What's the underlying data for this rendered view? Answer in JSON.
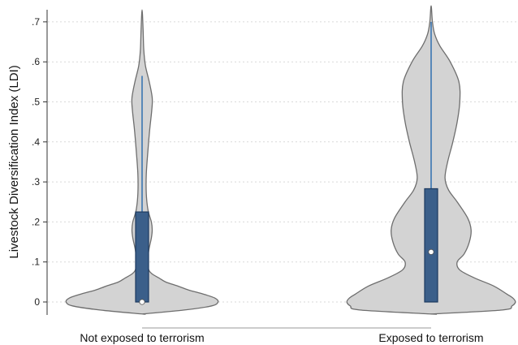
{
  "chart_data": {
    "type": "violin",
    "ylabel": "Livestock Diversification Index (LDI)",
    "ylim": [
      0,
      0.7
    ],
    "yticks": [
      0,
      0.1,
      0.2,
      0.3,
      0.4,
      0.5,
      0.6,
      0.7
    ],
    "ytick_labels": [
      "0",
      ".1",
      ".2",
      ".3",
      ".4",
      ".5",
      ".6",
      ".7"
    ],
    "grid": true,
    "colors": {
      "violin_fill": "#d3d3d3",
      "violin_edge": "#6e6e6e",
      "box_fill": "#3b5f8a",
      "box_edge": "#1d3a5f",
      "whisker": "#2f6fb0",
      "median": "#ffffff",
      "grid": "#d9d9d9"
    },
    "groups": [
      {
        "label": "Not exposed to terrorism",
        "box": {
          "q1": 0.0,
          "median": 0.0,
          "q3": 0.225,
          "whisker_low": 0.0,
          "whisker_high": 0.565
        },
        "density": [
          [
            -0.03,
            0.0
          ],
          [
            -0.02,
            0.5
          ],
          [
            -0.01,
            0.82
          ],
          [
            0.0,
            0.9
          ],
          [
            0.01,
            0.86
          ],
          [
            0.02,
            0.72
          ],
          [
            0.03,
            0.55
          ],
          [
            0.04,
            0.42
          ],
          [
            0.05,
            0.28
          ],
          [
            0.06,
            0.2
          ],
          [
            0.07,
            0.12
          ],
          [
            0.08,
            0.08
          ],
          [
            0.1,
            0.065
          ],
          [
            0.13,
            0.08
          ],
          [
            0.16,
            0.11
          ],
          [
            0.18,
            0.12
          ],
          [
            0.2,
            0.11
          ],
          [
            0.23,
            0.07
          ],
          [
            0.27,
            0.05
          ],
          [
            0.32,
            0.05
          ],
          [
            0.38,
            0.07
          ],
          [
            0.43,
            0.09
          ],
          [
            0.48,
            0.115
          ],
          [
            0.51,
            0.12
          ],
          [
            0.55,
            0.085
          ],
          [
            0.59,
            0.04
          ],
          [
            0.63,
            0.02
          ],
          [
            0.68,
            0.012
          ],
          [
            0.73,
            0.0
          ]
        ]
      },
      {
        "label": "Exposed to terrorism",
        "box": {
          "q1": 0.0,
          "median": 0.125,
          "q3": 0.283,
          "whisker_low": 0.0,
          "whisker_high": 0.7
        },
        "density": [
          [
            -0.03,
            0.0
          ],
          [
            -0.02,
            0.82
          ],
          [
            -0.01,
            0.93
          ],
          [
            0.0,
            0.97
          ],
          [
            0.01,
            0.94
          ],
          [
            0.02,
            0.87
          ],
          [
            0.04,
            0.72
          ],
          [
            0.06,
            0.5
          ],
          [
            0.08,
            0.33
          ],
          [
            0.1,
            0.3
          ],
          [
            0.12,
            0.38
          ],
          [
            0.15,
            0.44
          ],
          [
            0.18,
            0.46
          ],
          [
            0.21,
            0.42
          ],
          [
            0.25,
            0.3
          ],
          [
            0.28,
            0.2
          ],
          [
            0.31,
            0.16
          ],
          [
            0.35,
            0.19
          ],
          [
            0.4,
            0.25
          ],
          [
            0.45,
            0.3
          ],
          [
            0.5,
            0.33
          ],
          [
            0.55,
            0.32
          ],
          [
            0.6,
            0.22
          ],
          [
            0.64,
            0.1
          ],
          [
            0.67,
            0.04
          ],
          [
            0.7,
            0.015
          ],
          [
            0.74,
            0.0
          ]
        ]
      }
    ]
  }
}
